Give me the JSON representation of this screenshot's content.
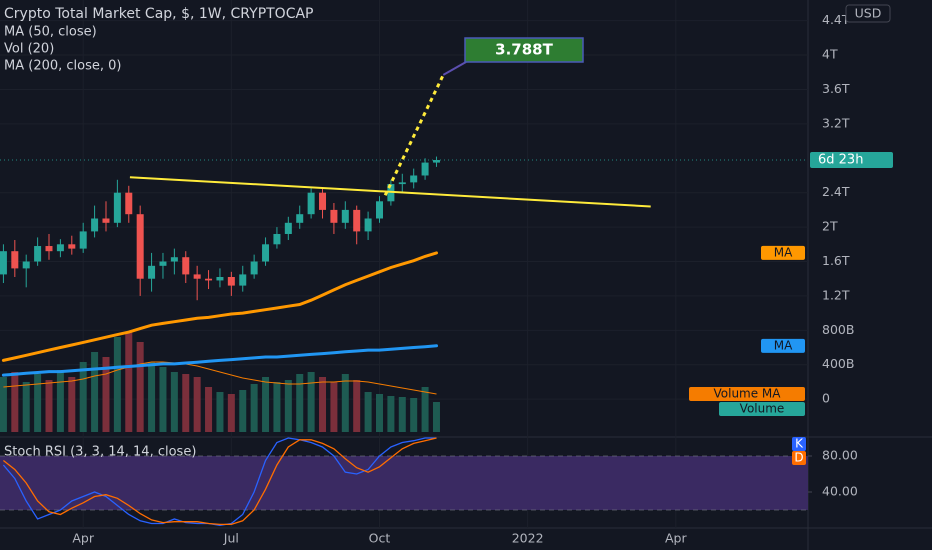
{
  "chart_data": {
    "type": "candlestick",
    "title": "Crypto Total Market Cap, $, 1W, CRYPTOCAP",
    "currency": "USD",
    "countdown": "6d 23h",
    "countdown_color": "#26a69a",
    "target_label": "3.788T",
    "grid": true,
    "x": [
      0,
      1,
      2,
      3,
      4,
      5,
      6,
      7,
      8,
      9,
      10,
      11,
      12,
      13,
      14,
      15,
      16,
      17,
      18,
      19,
      20,
      21,
      22,
      23,
      24,
      25,
      26,
      27,
      28,
      29,
      30,
      31,
      32,
      33,
      34,
      35,
      36,
      37,
      38
    ],
    "xlim": [
      -0.3,
      70.6
    ],
    "xticks": [
      {
        "value": 7,
        "label": "Apr"
      },
      {
        "value": 20,
        "label": "Jul"
      },
      {
        "value": 33,
        "label": "Oct"
      },
      {
        "value": 46,
        "label": "2022"
      },
      {
        "value": 59,
        "label": "Apr"
      }
    ],
    "ylim": [
      -0.44,
      4.64
    ],
    "yticks": [
      0,
      {
        "value": 0.4,
        "label": "400B"
      },
      {
        "value": 0.8,
        "label": "800B"
      },
      {
        "value": 1.2,
        "label": "1.2T"
      },
      {
        "value": 1.6,
        "label": "1.6T"
      },
      {
        "value": 2,
        "label": "2T"
      },
      {
        "value": 2.4,
        "label": "2.4T"
      },
      {
        "value": 3.2,
        "label": "3.2T"
      },
      {
        "value": 3.6,
        "label": "3.6T"
      },
      {
        "value": 4,
        "label": "4T"
      },
      {
        "value": 4.4,
        "label": "4.4T"
      }
    ],
    "ohlc": {
      "up_color": "#26a69a",
      "down_color": "#ef5350",
      "open": [
        1.45,
        1.72,
        1.52,
        1.6,
        1.78,
        1.72,
        1.8,
        1.75,
        1.95,
        2.1,
        2.05,
        2.4,
        2.15,
        1.4,
        1.55,
        1.6,
        1.65,
        1.45,
        1.4,
        1.38,
        1.42,
        1.32,
        1.45,
        1.6,
        1.8,
        1.92,
        2.05,
        2.15,
        2.4,
        2.2,
        2.05,
        2.2,
        1.95,
        2.1,
        2.3,
        2.5,
        2.52,
        2.6,
        2.75
      ],
      "high": [
        1.8,
        1.85,
        1.68,
        1.88,
        1.92,
        1.86,
        1.9,
        2.05,
        2.25,
        2.3,
        2.55,
        2.48,
        2.25,
        1.7,
        1.7,
        1.75,
        1.72,
        1.55,
        1.5,
        1.52,
        1.48,
        1.55,
        1.68,
        1.88,
        2.0,
        2.12,
        2.25,
        2.45,
        2.45,
        2.28,
        2.3,
        2.25,
        2.18,
        2.36,
        2.55,
        2.62,
        2.68,
        2.8,
        2.82
      ],
      "low": [
        1.35,
        1.42,
        1.3,
        1.55,
        1.62,
        1.65,
        1.68,
        1.7,
        1.88,
        1.95,
        2.0,
        2.05,
        1.2,
        1.25,
        1.4,
        1.45,
        1.35,
        1.15,
        1.28,
        1.3,
        1.2,
        1.25,
        1.4,
        1.55,
        1.75,
        1.85,
        1.98,
        2.1,
        2.1,
        1.92,
        1.98,
        1.8,
        1.85,
        2.05,
        2.25,
        2.4,
        2.45,
        2.55,
        2.7
      ],
      "close": [
        1.72,
        1.52,
        1.6,
        1.78,
        1.72,
        1.8,
        1.75,
        1.95,
        2.1,
        2.05,
        2.4,
        2.15,
        1.4,
        1.55,
        1.6,
        1.65,
        1.45,
        1.4,
        1.38,
        1.42,
        1.32,
        1.45,
        1.6,
        1.8,
        1.92,
        2.05,
        2.15,
        2.4,
        2.2,
        2.05,
        2.2,
        1.95,
        2.1,
        2.3,
        2.5,
        2.52,
        2.6,
        2.75,
        2.78
      ]
    },
    "indicators": [
      {
        "name": "MA (50, close)",
        "badge": "MA",
        "color": "#ff9800",
        "width": 3,
        "values": [
          0.45,
          0.48,
          0.51,
          0.54,
          0.57,
          0.6,
          0.63,
          0.66,
          0.69,
          0.72,
          0.75,
          0.78,
          0.82,
          0.86,
          0.88,
          0.9,
          0.92,
          0.94,
          0.95,
          0.97,
          0.99,
          1.0,
          1.02,
          1.04,
          1.06,
          1.08,
          1.1,
          1.15,
          1.21,
          1.27,
          1.33,
          1.38,
          1.43,
          1.48,
          1.53,
          1.57,
          1.61,
          1.66,
          1.7
        ]
      },
      {
        "name": "MA (200, close, 0)",
        "badge": "MA",
        "color": "#2196f3",
        "width": 3,
        "values": [
          0.28,
          0.29,
          0.3,
          0.31,
          0.32,
          0.32,
          0.33,
          0.34,
          0.35,
          0.36,
          0.37,
          0.38,
          0.39,
          0.4,
          0.41,
          0.41,
          0.42,
          0.43,
          0.44,
          0.45,
          0.46,
          0.47,
          0.48,
          0.49,
          0.49,
          0.5,
          0.51,
          0.52,
          0.53,
          0.54,
          0.55,
          0.56,
          0.57,
          0.57,
          0.58,
          0.59,
          0.6,
          0.61,
          0.62
        ]
      }
    ],
    "volume": {
      "name": "Vol (20)",
      "badge": "Volume",
      "ma_badge": "Volume MA",
      "up_color": "#1e5b52",
      "down_color": "#7b2f3b",
      "ma_color": "#f57c00",
      "badge_color": "#26a69a",
      "ylim": [
        0,
        420
      ],
      "values": [
        55,
        60,
        50,
        58,
        52,
        62,
        55,
        70,
        80,
        75,
        95,
        100,
        90,
        70,
        65,
        60,
        58,
        55,
        45,
        40,
        38,
        42,
        48,
        55,
        50,
        52,
        58,
        60,
        55,
        50,
        58,
        52,
        40,
        38,
        36,
        35,
        34,
        45,
        30
      ],
      "ma_values": [
        45,
        46,
        47,
        48,
        49,
        50,
        51,
        53,
        56,
        58,
        62,
        65,
        68,
        70,
        70,
        69,
        68,
        66,
        63,
        60,
        57,
        54,
        52,
        50,
        49,
        48,
        48,
        49,
        50,
        50,
        51,
        51,
        50,
        48,
        46,
        44,
        42,
        40,
        38
      ]
    },
    "trendline": {
      "color": "#ffeb3b",
      "x": [
        11.1,
        56.8
      ],
      "y": [
        2.58,
        2.24
      ]
    },
    "projection": {
      "color": "#ffeb3b",
      "x": [
        33.5,
        38.6
      ],
      "y": [
        2.37,
        3.77
      ]
    },
    "stoch": {
      "name": "Stoch RSI (3, 3, 14, 14, close)",
      "ylim": [
        0,
        100
      ],
      "yticks": [
        {
          "value": 80,
          "label": "80.00"
        },
        {
          "value": 40,
          "label": "40.00"
        }
      ],
      "band": [
        20,
        80
      ],
      "band_color": "#3a2a62",
      "series": [
        {
          "name": "K",
          "color": "#2962ff",
          "values": [
            70,
            55,
            30,
            10,
            15,
            20,
            30,
            35,
            40,
            35,
            25,
            15,
            8,
            5,
            5,
            10,
            6,
            5,
            5,
            3,
            5,
            15,
            40,
            75,
            95,
            100,
            98,
            95,
            90,
            80,
            62,
            60,
            65,
            80,
            90,
            95,
            97,
            100,
            100
          ]
        },
        {
          "name": "D",
          "color": "#ff6d00",
          "values": [
            75,
            65,
            50,
            30,
            18,
            15,
            22,
            28,
            35,
            37,
            33,
            25,
            16,
            9,
            6,
            7,
            7,
            7,
            5,
            4,
            4,
            8,
            20,
            43,
            70,
            90,
            98,
            98,
            94,
            88,
            77,
            67,
            62,
            68,
            78,
            88,
            94,
            97,
            100
          ]
        }
      ]
    }
  }
}
